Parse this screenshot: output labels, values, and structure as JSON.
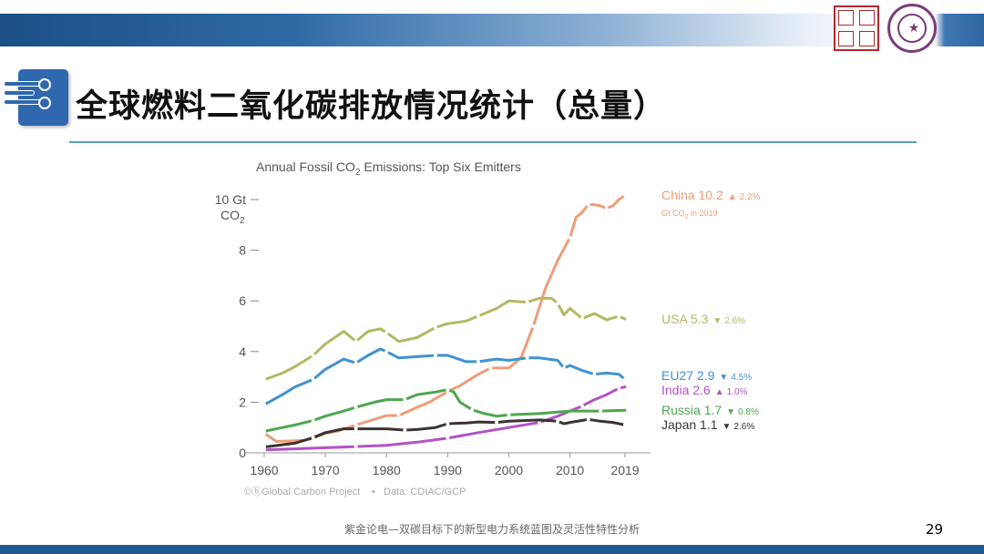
{
  "slide": {
    "title": "全球燃料二氧化碳排放情况统计（总量）",
    "caption": "紫金论电—双碳目标下的新型电力系统蓝图及灵活性特性分析",
    "page_number": "29"
  },
  "chart_data": {
    "type": "line",
    "title_main": "Annual Fossil CO",
    "title_sub": "2",
    "title_tail": " Emissions: Top Six Emitters",
    "ylabel_top": "10 Gt",
    "ylabel_bottom_main": "CO",
    "ylabel_bottom_sub": "2",
    "xlim": [
      1960,
      2019
    ],
    "ylim": [
      0,
      10
    ],
    "x_ticks": [
      "1960",
      "1970",
      "1980",
      "1990",
      "2000",
      "2010",
      "2019"
    ],
    "y_ticks": [
      "0",
      "2",
      "4",
      "6",
      "8"
    ],
    "grid": false,
    "source_credit": "©ⓑGlobal Carbon Project",
    "source_data": "Data: CDIAC/GCP",
    "unit_note": {
      "main": "Gt CO",
      "sub": "2",
      "tail": " in 2019"
    },
    "series": [
      {
        "name": "China",
        "value_label": "10.2",
        "arrow": "▲",
        "change": "2.2%",
        "color": "#ee9d78",
        "x": [
          1960,
          1962,
          1965,
          1967,
          1970,
          1972,
          1975,
          1977,
          1980,
          1982,
          1985,
          1987,
          1990,
          1992,
          1995,
          1997,
          2000,
          2002,
          2004,
          2006,
          2008,
          2010,
          2011,
          2012,
          2013,
          2014,
          2015,
          2016,
          2017,
          2018,
          2019
        ],
        "y": [
          0.78,
          0.45,
          0.48,
          0.5,
          0.77,
          0.86,
          1.1,
          1.25,
          1.47,
          1.47,
          1.8,
          2.0,
          2.42,
          2.65,
          3.1,
          3.35,
          3.35,
          3.75,
          5.0,
          6.5,
          7.6,
          8.5,
          9.3,
          9.5,
          9.8,
          9.8,
          9.75,
          9.65,
          9.75,
          10.0,
          10.17
        ]
      },
      {
        "name": "USA",
        "value_label": "5.3",
        "arrow": "▼",
        "change": "2.6%",
        "color": "#b4b863",
        "x": [
          1960,
          1963,
          1965,
          1968,
          1970,
          1973,
          1975,
          1977,
          1979,
          1980,
          1982,
          1985,
          1988,
          1990,
          1993,
          1995,
          1998,
          2000,
          2003,
          2005,
          2007,
          2008,
          2009,
          2010,
          2012,
          2014,
          2016,
          2018,
          2019
        ],
        "y": [
          2.88,
          3.15,
          3.4,
          3.85,
          4.3,
          4.8,
          4.4,
          4.8,
          4.9,
          4.75,
          4.4,
          4.55,
          4.95,
          5.1,
          5.2,
          5.4,
          5.7,
          6.0,
          5.95,
          6.1,
          6.1,
          5.9,
          5.45,
          5.7,
          5.3,
          5.5,
          5.25,
          5.4,
          5.28
        ]
      },
      {
        "name": "EU27",
        "value_label": "2.9",
        "arrow": "▼",
        "change": "4.5%",
        "color": "#3f92d1",
        "x": [
          1960,
          1963,
          1965,
          1968,
          1970,
          1973,
          1975,
          1977,
          1979,
          1980,
          1982,
          1985,
          1988,
          1990,
          1993,
          1995,
          1998,
          2000,
          2003,
          2005,
          2008,
          2009,
          2010,
          2012,
          2014,
          2016,
          2018,
          2019
        ],
        "y": [
          1.9,
          2.3,
          2.6,
          2.9,
          3.3,
          3.7,
          3.55,
          3.85,
          4.1,
          4.0,
          3.75,
          3.8,
          3.85,
          3.85,
          3.6,
          3.6,
          3.7,
          3.65,
          3.75,
          3.75,
          3.65,
          3.35,
          3.45,
          3.25,
          3.1,
          3.15,
          3.1,
          2.9
        ]
      },
      {
        "name": "India",
        "value_label": "2.6",
        "arrow": "▲",
        "change": "1.0%",
        "color": "#b352c4",
        "x": [
          1960,
          1965,
          1970,
          1975,
          1980,
          1985,
          1990,
          1995,
          2000,
          2005,
          2008,
          2010,
          2012,
          2014,
          2016,
          2018,
          2019
        ],
        "y": [
          0.12,
          0.16,
          0.2,
          0.25,
          0.3,
          0.42,
          0.58,
          0.8,
          1.0,
          1.2,
          1.45,
          1.65,
          1.85,
          2.1,
          2.3,
          2.55,
          2.6
        ]
      },
      {
        "name": "Russia",
        "value_label": "1.7",
        "arrow": "▼",
        "change": "0.8%",
        "color": "#4ea64e",
        "x": [
          1960,
          1963,
          1965,
          1968,
          1970,
          1973,
          1975,
          1978,
          1980,
          1983,
          1985,
          1988,
          1990,
          1991,
          1992,
          1994,
          1996,
          1998,
          2000,
          2005,
          2010,
          2015,
          2019
        ],
        "y": [
          0.85,
          1.0,
          1.1,
          1.28,
          1.45,
          1.65,
          1.8,
          2.0,
          2.1,
          2.1,
          2.3,
          2.4,
          2.5,
          2.4,
          2.0,
          1.7,
          1.55,
          1.45,
          1.5,
          1.55,
          1.65,
          1.65,
          1.68
        ]
      },
      {
        "name": "Japan",
        "value_label": "1.1",
        "arrow": "▼",
        "change": "2.6%",
        "color": "#3a3330",
        "x": [
          1960,
          1963,
          1965,
          1968,
          1970,
          1973,
          1975,
          1978,
          1980,
          1983,
          1985,
          1988,
          1990,
          1993,
          1995,
          1998,
          2000,
          2005,
          2008,
          2009,
          2010,
          2013,
          2015,
          2017,
          2019
        ],
        "y": [
          0.23,
          0.32,
          0.38,
          0.6,
          0.8,
          0.95,
          0.95,
          0.95,
          0.95,
          0.9,
          0.92,
          1.0,
          1.15,
          1.18,
          1.22,
          1.2,
          1.25,
          1.3,
          1.25,
          1.15,
          1.2,
          1.32,
          1.25,
          1.2,
          1.1
        ]
      }
    ]
  }
}
